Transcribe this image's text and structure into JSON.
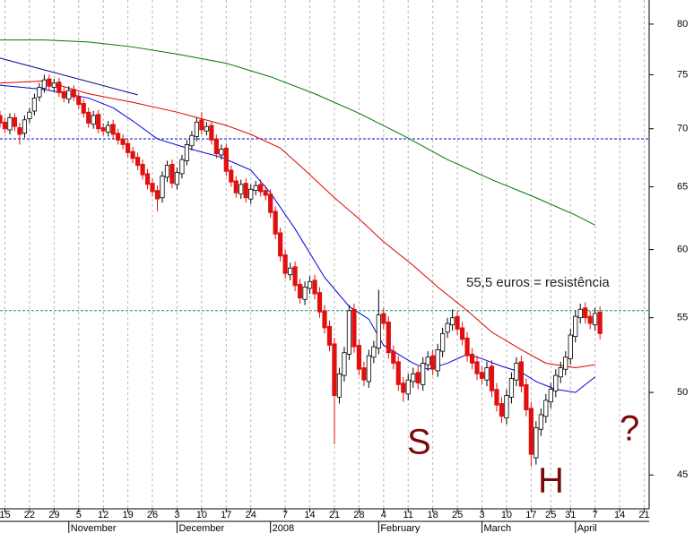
{
  "chart_data": {
    "type": "candlestick",
    "ylim": [
      43.1,
      82.5
    ],
    "log_scale": true,
    "yticks": [
      45,
      50,
      55,
      60,
      65,
      70,
      75,
      80
    ],
    "xlim": [
      -1,
      131
    ],
    "xticks": [
      {
        "value": 0,
        "label": "15"
      },
      {
        "value": 5,
        "label": "22"
      },
      {
        "value": 10,
        "label": "29"
      },
      {
        "value": 15,
        "label": "5"
      },
      {
        "value": 20,
        "label": "12"
      },
      {
        "value": 25,
        "label": "19"
      },
      {
        "value": 30,
        "label": "26"
      },
      {
        "value": 35,
        "label": "3"
      },
      {
        "value": 40,
        "label": "10"
      },
      {
        "value": 45,
        "label": "17"
      },
      {
        "value": 50,
        "label": "24"
      },
      {
        "value": 57,
        "label": "7"
      },
      {
        "value": 62,
        "label": "14"
      },
      {
        "value": 67,
        "label": "21"
      },
      {
        "value": 72,
        "label": "28"
      },
      {
        "value": 77,
        "label": "4"
      },
      {
        "value": 82,
        "label": "11"
      },
      {
        "value": 87,
        "label": "18"
      },
      {
        "value": 92,
        "label": "25"
      },
      {
        "value": 97,
        "label": "3"
      },
      {
        "value": 102,
        "label": "10"
      },
      {
        "value": 107,
        "label": "17"
      },
      {
        "value": 111,
        "label": "25"
      },
      {
        "value": 115,
        "label": "31"
      },
      {
        "value": 120,
        "label": "7"
      },
      {
        "value": 125,
        "label": "14"
      },
      {
        "value": 130,
        "label": "21"
      }
    ],
    "xmonths": [
      {
        "value": 13,
        "label": "November"
      },
      {
        "value": 35,
        "label": "December"
      },
      {
        "value": 54,
        "label": "2008"
      },
      {
        "value": 76,
        "label": "February"
      },
      {
        "value": 97,
        "label": "March"
      },
      {
        "value": 116,
        "label": "April"
      }
    ],
    "grid": true,
    "up_color": "#ffffff",
    "down_color": "#e01010",
    "x": [
      -1,
      0,
      1,
      2,
      3,
      4,
      5,
      6,
      7,
      8,
      9,
      10,
      11,
      12,
      13,
      14,
      15,
      16,
      17,
      18,
      19,
      20,
      21,
      22,
      23,
      24,
      25,
      26,
      27,
      28,
      29,
      30,
      31,
      32,
      33,
      34,
      35,
      36,
      37,
      38,
      39,
      40,
      41,
      42,
      43,
      44,
      45,
      46,
      47,
      48,
      49,
      50,
      51,
      52,
      53,
      54,
      55,
      56,
      57,
      58,
      59,
      60,
      61,
      62,
      63,
      64,
      65,
      66,
      67,
      68,
      69,
      70,
      71,
      72,
      73,
      74,
      75,
      76,
      77,
      78,
      79,
      80,
      81,
      82,
      83,
      84,
      85,
      86,
      87,
      88,
      89,
      90,
      91,
      92,
      93,
      94,
      95,
      96,
      97,
      98,
      99,
      100,
      101,
      102,
      103,
      104,
      105,
      106,
      107,
      108,
      109,
      110,
      111,
      112,
      113,
      114,
      115,
      116,
      117,
      118,
      119,
      120,
      121
    ],
    "open": [
      71.2,
      70.6,
      69.9,
      71.0,
      70.1,
      69.6,
      70.9,
      71.6,
      72.9,
      73.7,
      74.6,
      73.8,
      74.3,
      73.4,
      72.7,
      73.6,
      72.9,
      72.3,
      71.5,
      70.4,
      71.3,
      70.1,
      69.7,
      70.4,
      69.6,
      69.1,
      68.7,
      68.0,
      67.5,
      66.9,
      66.1,
      65.3,
      64.7,
      64.1,
      65.8,
      66.9,
      65.2,
      66.1,
      67.2,
      68.5,
      69.3,
      70.8,
      69.8,
      70.3,
      69.1,
      67.7,
      68.3,
      66.4,
      65.5,
      64.4,
      65.3,
      64.0,
      64.7,
      65.2,
      64.7,
      64.4,
      63.0,
      61.3,
      59.6,
      58.1,
      58.7,
      57.4,
      56.3,
      57.1,
      57.7,
      56.8,
      55.5,
      54.4,
      53.2,
      49.7,
      51.1,
      52.5,
      55.6,
      53.1,
      51.6,
      50.7,
      52.3,
      52.9,
      55.3,
      54.7,
      52.7,
      52.0,
      50.6,
      49.9,
      50.7,
      51.3,
      50.5,
      51.8,
      52.4,
      51.4,
      52.7,
      54.0,
      54.5,
      55.1,
      54.3,
      53.6,
      52.5,
      52.0,
      51.3,
      50.8,
      51.7,
      50.2,
      49.3,
      48.4,
      49.7,
      50.8,
      52.0,
      50.5,
      49.0,
      46.0,
      47.7,
      48.5,
      49.4,
      50.1,
      51.0,
      51.5,
      52.2,
      53.7,
      55.0,
      55.7,
      55.1,
      54.5,
      55.4
    ],
    "high": [
      71.6,
      71.0,
      71.4,
      71.4,
      70.5,
      71.2,
      71.9,
      73.2,
      74.2,
      75.0,
      75.0,
      74.6,
      74.7,
      73.8,
      73.9,
      74.0,
      73.3,
      72.7,
      71.9,
      71.6,
      71.7,
      70.5,
      70.7,
      70.8,
      70.0,
      69.5,
      69.1,
      68.4,
      67.9,
      67.3,
      66.5,
      65.7,
      65.1,
      66.3,
      67.2,
      67.3,
      66.6,
      67.7,
      69.0,
      69.8,
      71.0,
      71.5,
      70.6,
      70.7,
      69.5,
      68.6,
      68.7,
      66.8,
      65.9,
      65.6,
      65.7,
      65.2,
      65.5,
      65.6,
      65.1,
      64.8,
      63.4,
      61.7,
      60.0,
      59.0,
      59.1,
      57.8,
      57.6,
      58.0,
      58.1,
      57.2,
      55.9,
      54.8,
      53.6,
      51.6,
      53.0,
      55.9,
      56.0,
      53.5,
      52.0,
      52.8,
      53.4,
      57.0,
      55.7,
      55.1,
      53.1,
      52.4,
      51.0,
      51.2,
      51.6,
      51.7,
      52.3,
      52.7,
      52.8,
      53.2,
      54.3,
      55.0,
      55.6,
      55.5,
      54.7,
      54.0,
      52.9,
      52.4,
      51.7,
      52.0,
      52.1,
      50.6,
      49.7,
      50.2,
      51.3,
      52.3,
      52.4,
      50.9,
      49.4,
      48.2,
      49.0,
      49.9,
      50.6,
      51.5,
      52.0,
      52.7,
      54.2,
      55.5,
      56.0,
      56.1,
      55.5,
      55.7,
      55.8
    ],
    "low": [
      70.1,
      69.6,
      69.5,
      69.8,
      68.6,
      69.2,
      70.5,
      71.2,
      72.5,
      73.3,
      73.5,
      73.4,
      72.9,
      72.4,
      72.3,
      72.5,
      71.8,
      71.0,
      70.1,
      70.0,
      69.6,
      69.4,
      69.3,
      69.1,
      68.6,
      68.2,
      67.5,
      67.0,
      66.4,
      65.6,
      64.8,
      64.2,
      63.0,
      63.7,
      65.4,
      64.9,
      64.8,
      65.7,
      66.8,
      68.1,
      68.9,
      69.5,
      69.4,
      68.6,
      67.4,
      67.3,
      65.9,
      65.0,
      64.1,
      64.0,
      63.7,
      63.6,
      64.3,
      64.2,
      63.9,
      62.5,
      60.8,
      59.1,
      57.8,
      57.7,
      56.9,
      56.0,
      55.9,
      56.7,
      56.3,
      55.0,
      53.9,
      52.7,
      46.8,
      49.3,
      50.7,
      52.1,
      52.6,
      51.1,
      50.4,
      50.3,
      51.9,
      52.5,
      54.2,
      52.2,
      51.5,
      50.1,
      49.4,
      49.5,
      50.3,
      50.2,
      50.1,
      51.4,
      51.1,
      51.0,
      52.3,
      53.6,
      54.1,
      53.8,
      53.1,
      52.0,
      51.5,
      50.8,
      50.5,
      50.4,
      49.7,
      48.8,
      48.1,
      48.0,
      49.3,
      50.4,
      50.0,
      48.5,
      45.5,
      45.6,
      47.3,
      48.1,
      49.0,
      49.7,
      50.6,
      51.1,
      51.8,
      53.3,
      54.6,
      54.6,
      54.2,
      54.1,
      53.5
    ],
    "close": [
      70.5,
      70.0,
      71.0,
      70.2,
      69.5,
      70.8,
      71.5,
      72.8,
      73.8,
      74.5,
      73.9,
      74.2,
      73.3,
      72.8,
      73.5,
      72.9,
      72.2,
      71.4,
      70.5,
      71.2,
      70.0,
      69.8,
      70.3,
      69.5,
      69.0,
      68.6,
      67.9,
      67.4,
      66.8,
      66.0,
      65.2,
      64.6,
      64.0,
      65.9,
      66.8,
      65.3,
      66.2,
      67.3,
      68.6,
      69.4,
      70.6,
      69.9,
      70.2,
      69.0,
      67.8,
      68.2,
      66.3,
      65.4,
      64.5,
      65.2,
      64.1,
      64.8,
      65.1,
      64.6,
      64.3,
      62.9,
      61.2,
      59.5,
      58.2,
      58.6,
      57.3,
      56.4,
      57.2,
      57.6,
      56.7,
      55.4,
      54.3,
      53.1,
      49.8,
      51.2,
      52.6,
      55.5,
      53.0,
      51.5,
      50.8,
      52.4,
      53.0,
      55.2,
      54.6,
      52.6,
      51.9,
      50.5,
      50.0,
      50.8,
      51.2,
      50.6,
      51.9,
      52.3,
      51.5,
      52.8,
      53.9,
      54.6,
      55.0,
      54.2,
      53.5,
      52.4,
      51.9,
      51.2,
      50.9,
      51.6,
      50.1,
      49.2,
      48.5,
      49.8,
      50.9,
      51.9,
      50.4,
      48.9,
      46.2,
      47.8,
      48.6,
      49.5,
      50.2,
      51.1,
      51.6,
      52.3,
      53.8,
      55.1,
      55.6,
      55.0,
      54.6,
      55.3,
      53.9
    ],
    "lines": [
      {
        "color": "#000080",
        "x": [
          -1,
          27
        ],
        "values": [
          76.6,
          73.1
        ]
      },
      {
        "color": "#0000dd",
        "x": [
          -1,
          8,
          17,
          22,
          26,
          31,
          37,
          44,
          50,
          54,
          59,
          65,
          70,
          74,
          77,
          83,
          86,
          90,
          94,
          97,
          101,
          105,
          108,
          112,
          116,
          120
        ],
        "values": [
          74.0,
          73.6,
          72.8,
          71.9,
          70.7,
          69.1,
          68.3,
          67.5,
          66.4,
          64.5,
          61.6,
          57.9,
          55.8,
          54.9,
          53.1,
          51.9,
          51.5,
          51.9,
          52.5,
          52.2,
          51.7,
          51.3,
          50.7,
          50.2,
          50.0,
          51.0
        ]
      },
      {
        "color": "#dd0000",
        "x": [
          -1,
          8,
          17,
          26,
          35,
          45,
          50,
          56,
          61,
          67,
          72,
          77,
          83,
          88,
          94,
          99,
          105,
          110,
          116,
          120
        ],
        "values": [
          74.2,
          74.4,
          73.2,
          72.4,
          71.5,
          70.3,
          69.5,
          68.3,
          66.4,
          64.1,
          62.4,
          60.6,
          58.8,
          57.2,
          55.5,
          54.0,
          52.8,
          51.9,
          51.6,
          51.8
        ]
      },
      {
        "color": "#007700",
        "x": [
          -1,
          8,
          17,
          26,
          35,
          45,
          54,
          63,
          72,
          81,
          90,
          99,
          108,
          116,
          120
        ],
        "values": [
          78.4,
          78.4,
          78.2,
          77.7,
          77.0,
          76.1,
          74.8,
          73.2,
          71.4,
          69.4,
          67.3,
          65.6,
          64.1,
          62.7,
          61.9
        ]
      }
    ],
    "hlines": [
      {
        "value": 69.1,
        "color": "#0000cc"
      },
      {
        "value": 55.5,
        "color": "#009966"
      }
    ],
    "annotations": [
      {
        "text": "55,5 euros = resistência"
      },
      {
        "text": "S"
      },
      {
        "text": "H"
      },
      {
        "text": "?"
      }
    ]
  }
}
